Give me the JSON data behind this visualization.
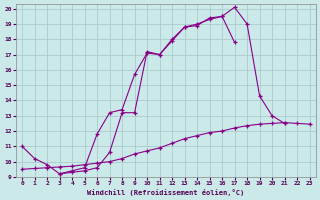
{
  "xlabel": "Windchill (Refroidissement éolien,°C)",
  "background_color": "#cce9e9",
  "grid_color": "#aacccc",
  "line_color": "#880088",
  "xlim": [
    -0.5,
    23.5
  ],
  "ylim": [
    9,
    20.3
  ],
  "xticks": [
    0,
    1,
    2,
    3,
    4,
    5,
    6,
    7,
    8,
    9,
    10,
    11,
    12,
    13,
    14,
    15,
    16,
    17,
    18,
    19,
    20,
    21,
    22,
    23
  ],
  "yticks": [
    9,
    10,
    11,
    12,
    13,
    14,
    15,
    16,
    17,
    18,
    19,
    20
  ],
  "line1_x": [
    0,
    1,
    2,
    3,
    4,
    5,
    6,
    7,
    8,
    9,
    10,
    11,
    12,
    13,
    14,
    15,
    16,
    17,
    18,
    19,
    20,
    21,
    22
  ],
  "line1_y": [
    11.0,
    10.2,
    9.8,
    9.2,
    9.3,
    9.4,
    9.6,
    10.6,
    13.2,
    13.2,
    17.2,
    17.0,
    18.0,
    18.8,
    19.0,
    19.3,
    19.5,
    20.1,
    19.0,
    14.3,
    13.0,
    12.5,
    null
  ],
  "line2_x": [
    3,
    4,
    5,
    6,
    7,
    8,
    9,
    10,
    11,
    12,
    13,
    14,
    15,
    16,
    17,
    18
  ],
  "line2_y": [
    9.2,
    9.4,
    9.6,
    11.8,
    13.2,
    13.4,
    15.7,
    17.1,
    17.0,
    17.9,
    18.8,
    18.9,
    19.4,
    19.5,
    17.8,
    null
  ],
  "line3_x": [
    0,
    1,
    2,
    3,
    4,
    5,
    6,
    7,
    8,
    9,
    10,
    11,
    12,
    13,
    14,
    15,
    16,
    17,
    18,
    19,
    20,
    21,
    22,
    23
  ],
  "line3_y": [
    9.5,
    9.55,
    9.6,
    9.65,
    9.7,
    9.8,
    9.9,
    10.0,
    10.2,
    10.5,
    10.7,
    10.9,
    11.2,
    11.5,
    11.7,
    11.9,
    12.0,
    12.2,
    12.35,
    12.45,
    12.5,
    12.55,
    12.5,
    12.45
  ]
}
